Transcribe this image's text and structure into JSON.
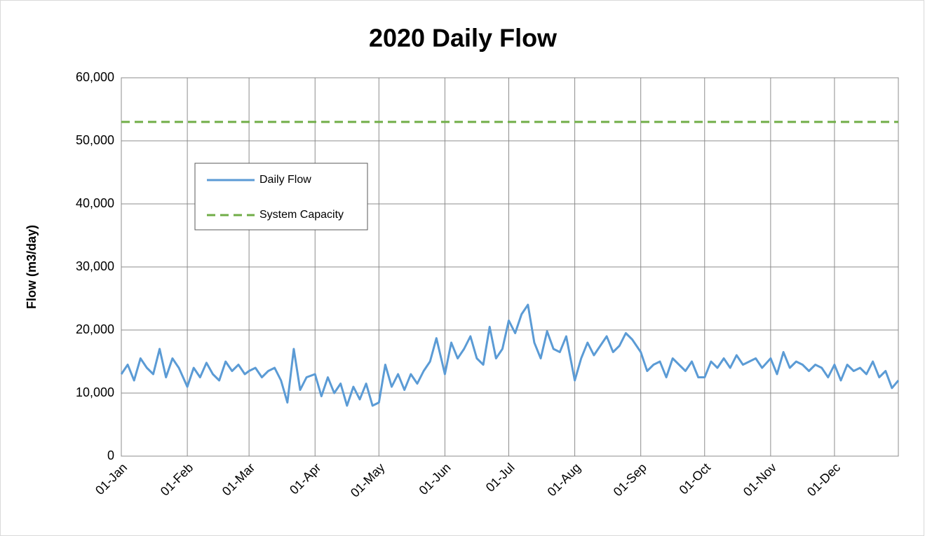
{
  "chart_data": {
    "type": "line",
    "title": "2020 Daily Flow",
    "y_label": "Flow (m3/day)",
    "x": [
      "01-Jan",
      "04-Jan",
      "07-Jan",
      "10-Jan",
      "13-Jan",
      "16-Jan",
      "19-Jan",
      "22-Jan",
      "25-Jan",
      "28-Jan",
      "01-Feb",
      "04-Feb",
      "07-Feb",
      "10-Feb",
      "13-Feb",
      "16-Feb",
      "19-Feb",
      "22-Feb",
      "25-Feb",
      "28-Feb",
      "01-Mar",
      "04-Mar",
      "07-Mar",
      "10-Mar",
      "13-Mar",
      "16-Mar",
      "19-Mar",
      "22-Mar",
      "25-Mar",
      "28-Mar",
      "01-Apr",
      "04-Apr",
      "07-Apr",
      "10-Apr",
      "13-Apr",
      "16-Apr",
      "19-Apr",
      "22-Apr",
      "25-Apr",
      "28-Apr",
      "01-May",
      "04-May",
      "07-May",
      "10-May",
      "13-May",
      "16-May",
      "19-May",
      "22-May",
      "25-May",
      "28-May",
      "01-Jun",
      "04-Jun",
      "07-Jun",
      "10-Jun",
      "13-Jun",
      "16-Jun",
      "19-Jun",
      "22-Jun",
      "25-Jun",
      "28-Jun",
      "01-Jul",
      "04-Jul",
      "07-Jul",
      "10-Jul",
      "13-Jul",
      "16-Jul",
      "19-Jul",
      "22-Jul",
      "25-Jul",
      "28-Jul",
      "01-Aug",
      "04-Aug",
      "07-Aug",
      "10-Aug",
      "13-Aug",
      "16-Aug",
      "19-Aug",
      "22-Aug",
      "25-Aug",
      "28-Aug",
      "01-Sep",
      "04-Sep",
      "07-Sep",
      "10-Sep",
      "13-Sep",
      "16-Sep",
      "19-Sep",
      "22-Sep",
      "25-Sep",
      "28-Sep",
      "01-Oct",
      "04-Oct",
      "07-Oct",
      "10-Oct",
      "13-Oct",
      "16-Oct",
      "19-Oct",
      "22-Oct",
      "25-Oct",
      "28-Oct",
      "01-Nov",
      "04-Nov",
      "07-Nov",
      "10-Nov",
      "13-Nov",
      "16-Nov",
      "19-Nov",
      "22-Nov",
      "25-Nov",
      "28-Nov",
      "01-Dec",
      "04-Dec",
      "07-Dec",
      "10-Dec",
      "13-Dec",
      "16-Dec",
      "19-Dec",
      "22-Dec",
      "25-Dec",
      "28-Dec",
      "31-Dec"
    ],
    "series": [
      {
        "name": "Daily Flow",
        "color": "#5b9bd5",
        "values": [
          13000,
          14500,
          12000,
          15500,
          14000,
          13000,
          17000,
          12500,
          15500,
          14000,
          11000,
          14000,
          12500,
          14800,
          13000,
          12000,
          15000,
          13500,
          14500,
          13000,
          13500,
          14000,
          12500,
          13500,
          14000,
          12000,
          8500,
          17000,
          10500,
          12500,
          13000,
          9500,
          12500,
          10000,
          11500,
          8000,
          11000,
          9000,
          11500,
          8000,
          8500,
          14500,
          11000,
          13000,
          10500,
          13000,
          11500,
          13500,
          15000,
          18700,
          13000,
          18000,
          15500,
          17000,
          19000,
          15500,
          14500,
          20500,
          15500,
          17000,
          21500,
          19500,
          22500,
          24000,
          18000,
          15500,
          19800,
          17000,
          16500,
          19000,
          12000,
          15500,
          18000,
          16000,
          17500,
          19000,
          16500,
          17500,
          19500,
          18500,
          16500,
          13500,
          14500,
          15000,
          12500,
          15500,
          14500,
          13500,
          15000,
          12500,
          12500,
          15000,
          14000,
          15500,
          14000,
          16000,
          14500,
          15000,
          15500,
          14000,
          15500,
          13000,
          16500,
          14000,
          15000,
          14500,
          13500,
          14500,
          14000,
          12500,
          14500,
          12000,
          14500,
          13500,
          14000,
          13000,
          15000,
          12500,
          13500,
          10800,
          12000
        ]
      }
    ],
    "reference_lines": [
      {
        "name": "System Capacity",
        "color": "#70ad47",
        "value": 53000,
        "dashed": true
      }
    ],
    "xlim": [
      "01-Jan",
      "31-Dec"
    ],
    "xticks": [
      "01-Jan",
      "01-Feb",
      "01-Mar",
      "01-Apr",
      "01-May",
      "01-Jun",
      "01-Jul",
      "01-Aug",
      "01-Sep",
      "01-Oct",
      "01-Nov",
      "01-Dec"
    ],
    "ylim": [
      0,
      60000
    ],
    "yticks": [
      0,
      {
        "value": 10000,
        "label": "10,000"
      },
      {
        "value": 20000,
        "label": "20,000"
      },
      {
        "value": 30000,
        "label": "30,000"
      },
      {
        "value": 40000,
        "label": "40,000"
      },
      {
        "value": 50000,
        "label": "50,000"
      },
      {
        "value": 60000,
        "label": "60,000"
      }
    ],
    "grid": true
  }
}
